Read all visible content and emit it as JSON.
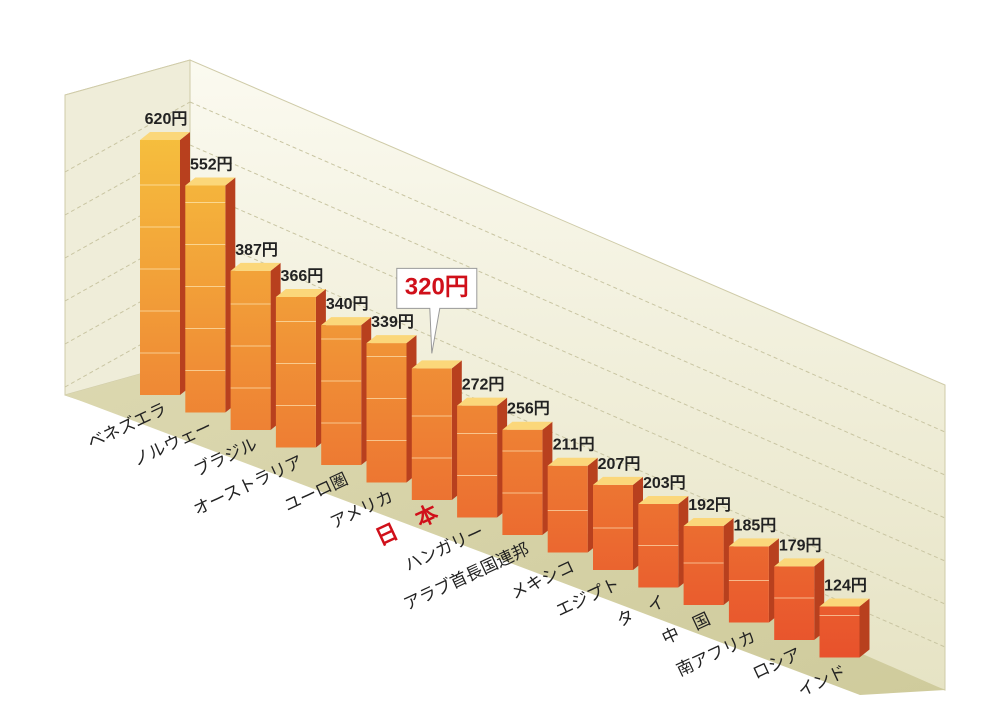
{
  "chart_data": {
    "type": "bar3d",
    "categories": [
      "ベネズエラ",
      "ノルウェー",
      "ブラジル",
      "オーストラリア",
      "ユーロ圏",
      "アメリカ",
      "日　本",
      "ハンガリー",
      "アラブ首長国連邦",
      "メキシコ",
      "エジプト",
      "タ　イ",
      "中　国",
      "南アフリカ",
      "ロシア",
      "インド"
    ],
    "values": [
      620,
      552,
      387,
      366,
      340,
      339,
      320,
      272,
      256,
      211,
      207,
      203,
      192,
      185,
      179,
      124
    ],
    "value_labels": [
      "620円",
      "552円",
      "387円",
      "366円",
      "340円",
      "339円",
      "320円",
      "272円",
      "256円",
      "211円",
      "207円",
      "203円",
      "192円",
      "185円",
      "179円",
      "124円"
    ],
    "color_top": "#f6c23e",
    "color_bottom": "#e8512c",
    "grid": true,
    "highlight": {
      "category_index": 6,
      "color": "#d0101a"
    }
  }
}
